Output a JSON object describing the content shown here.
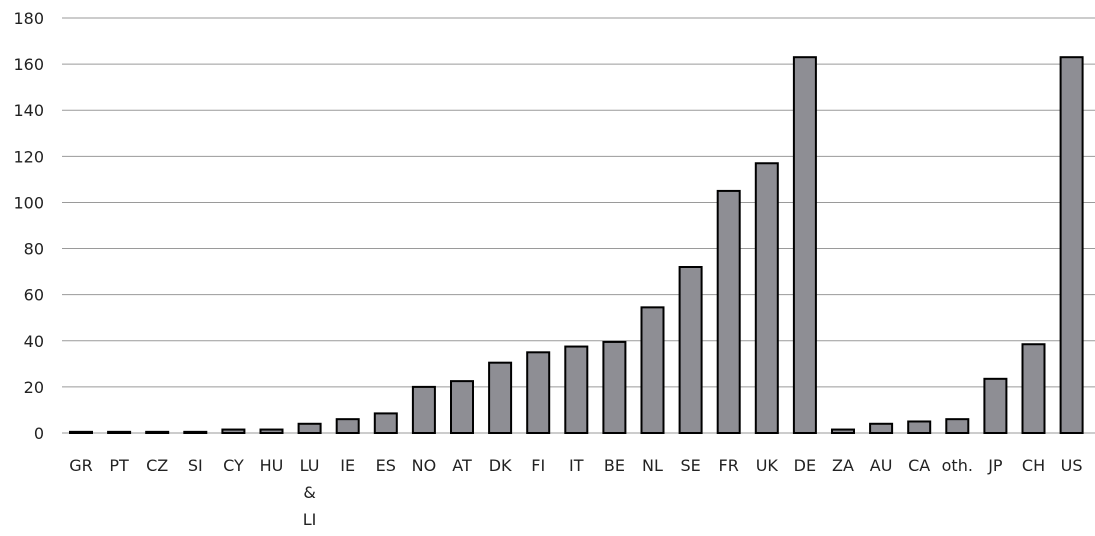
{
  "chart_data": {
    "type": "bar",
    "title": "",
    "xlabel": "",
    "ylabel": "",
    "ylim": [
      0,
      180
    ],
    "yticks": [
      0,
      20,
      40,
      60,
      80,
      100,
      120,
      140,
      160,
      180
    ],
    "grid": true,
    "legend": "none",
    "colors": {
      "bar_fill": "#8e8e94",
      "bar_stroke": "#000000",
      "grid": "#9a9a9a",
      "text": "#222222"
    },
    "categories": [
      "GR",
      "PT",
      "CZ",
      "SI",
      "CY",
      "HU",
      "LU & LI",
      "IE",
      "ES",
      "NO",
      "AT",
      "DK",
      "FI",
      "IT",
      "BE",
      "NL",
      "SE",
      "FR",
      "UK",
      "DE",
      "ZA",
      "AU",
      "CA",
      "oth.",
      "JP",
      "CH",
      "US"
    ],
    "category_label_lines": [
      [
        "GR"
      ],
      [
        "PT"
      ],
      [
        "CZ"
      ],
      [
        "SI"
      ],
      [
        "CY"
      ],
      [
        "HU"
      ],
      [
        "LU",
        "&",
        "LI"
      ],
      [
        "IE"
      ],
      [
        "ES"
      ],
      [
        "NO"
      ],
      [
        "AT"
      ],
      [
        "DK"
      ],
      [
        "FI"
      ],
      [
        "IT"
      ],
      [
        "BE"
      ],
      [
        "NL"
      ],
      [
        "SE"
      ],
      [
        "FR"
      ],
      [
        "UK"
      ],
      [
        "DE"
      ],
      [
        "ZA"
      ],
      [
        "AU"
      ],
      [
        "CA"
      ],
      [
        "oth."
      ],
      [
        "JP"
      ],
      [
        "CH"
      ],
      [
        "US"
      ]
    ],
    "values": [
      0.5,
      0.5,
      0.5,
      0.5,
      1.5,
      1.5,
      4,
      6,
      8.5,
      20,
      22.5,
      30.5,
      35,
      37.5,
      39.5,
      54.5,
      72,
      105,
      117,
      163,
      1.5,
      4,
      5,
      6,
      23.5,
      38.5,
      163
    ]
  }
}
